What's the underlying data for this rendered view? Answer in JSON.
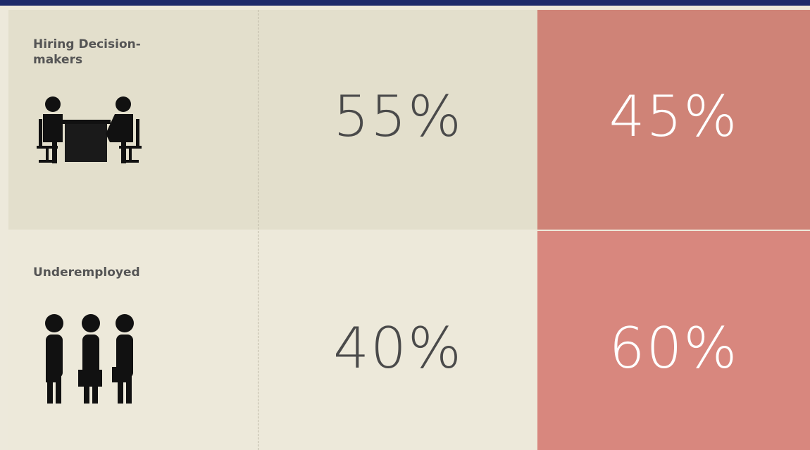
{
  "table": {
    "rows": [
      {
        "label": "Hiring Decision-makers",
        "cells": [
          "55%",
          "45%"
        ]
      },
      {
        "label": "Underemployed",
        "cells": [
          "40%",
          "60%"
        ]
      }
    ]
  }
}
